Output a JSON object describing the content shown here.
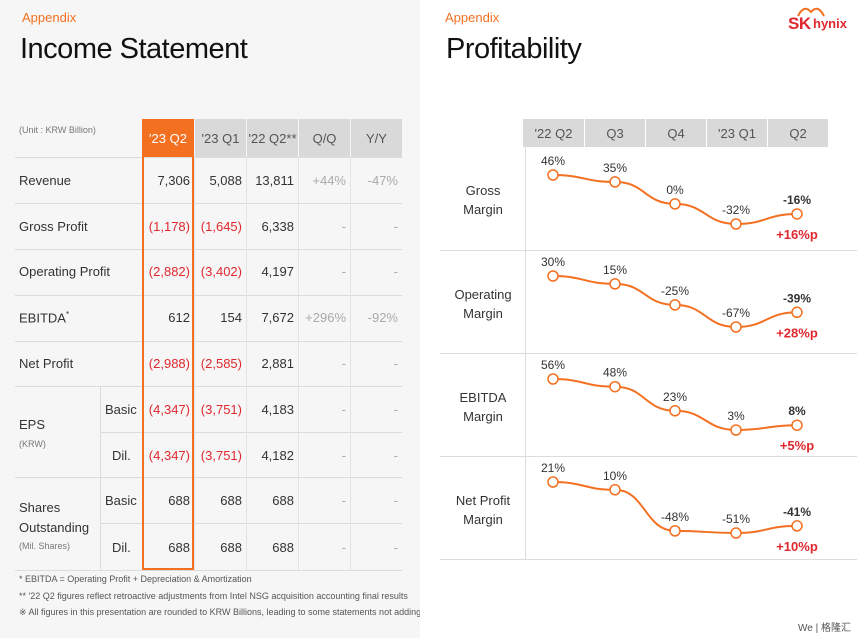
{
  "left": {
    "appendix": "Appendix",
    "title": "Income Statement",
    "unit": "(Unit : KRW Billion)",
    "headers": [
      "'23 Q2",
      "'23 Q1",
      "'22 Q2**",
      "Q/Q",
      "Y/Y"
    ],
    "rows": {
      "revenue": {
        "label": "Revenue",
        "values": [
          "7,306",
          "5,088",
          "13,811",
          "+44%",
          "-47%"
        ]
      },
      "gross_profit": {
        "label": "Gross Profit",
        "values": [
          "(1,178)",
          "(1,645)",
          "6,338",
          "-",
          "-"
        ]
      },
      "operating_profit": {
        "label": "Operating Profit",
        "values": [
          "(2,882)",
          "(3,402)",
          "4,197",
          "-",
          "-"
        ]
      },
      "ebitda": {
        "label": "EBITDA",
        "label_sup": "*",
        "values": [
          "612",
          "154",
          "7,672",
          "+296%",
          "-92%"
        ]
      },
      "net_profit": {
        "label": "Net Profit",
        "values": [
          "(2,988)",
          "(2,585)",
          "2,881",
          "-",
          "-"
        ]
      },
      "eps_basic": {
        "values": [
          "(4,347)",
          "(3,751)",
          "4,183",
          "-",
          "-"
        ]
      },
      "eps_dil": {
        "values": [
          "(4,347)",
          "(3,751)",
          "4,182",
          "-",
          "-"
        ]
      },
      "shares_basic": {
        "values": [
          "688",
          "688",
          "688",
          "-",
          "-"
        ]
      },
      "shares_dil": {
        "values": [
          "688",
          "688",
          "688",
          "-",
          "-"
        ]
      }
    },
    "eps": {
      "label": "EPS",
      "sub": "(KRW)"
    },
    "shares": {
      "label1": "Shares",
      "label2": "Outstanding",
      "sub": "(Mil. Shares)"
    },
    "basic": "Basic",
    "dil": "Dil.",
    "footnotes": [
      "* EBITDA = Operating Profit + Depreciation & Amortization",
      "** '22 Q2 figures reflect retroactive adjustments from Intel NSG acquisition accounting final results",
      "※ All figures in this presentation are rounded to KRW Billions, leading to some statements not adding up completely"
    ]
  },
  "right": {
    "appendix": "Appendix",
    "title": "Profitability",
    "logo_sk": "SK",
    "logo_hynix": "hynix",
    "watermark": "We | 格隆汇"
  },
  "colors": {
    "accent": "#f37021",
    "negative": "#e0282e",
    "header_bg": "#d9d9d9"
  },
  "chart_data": {
    "type": "line",
    "categories": [
      "'22 Q2",
      "Q3",
      "Q4",
      "'23 Q1",
      "Q2"
    ],
    "series": [
      {
        "name": "Gross Margin",
        "label_line1": "Gross",
        "label_line2": "Margin",
        "values": [
          46,
          35,
          0,
          -32,
          -16
        ],
        "labels": [
          "46%",
          "35%",
          "0%",
          "-32%",
          "-16%"
        ],
        "change": "+16%p"
      },
      {
        "name": "Operating Margin",
        "label_line1": "Operating",
        "label_line2": "Margin",
        "values": [
          30,
          15,
          -25,
          -67,
          -39
        ],
        "labels": [
          "30%",
          "15%",
          "-25%",
          "-67%",
          "-39%"
        ],
        "change": "+28%p"
      },
      {
        "name": "EBITDA Margin",
        "label_line1": "EBITDA",
        "label_line2": "Margin",
        "values": [
          56,
          48,
          23,
          3,
          8
        ],
        "labels": [
          "56%",
          "48%",
          "23%",
          "3%",
          "8%"
        ],
        "change": "+5%p"
      },
      {
        "name": "Net Profit Margin",
        "label_line1": "Net Profit",
        "label_line2": "Margin",
        "values": [
          21,
          10,
          -48,
          -51,
          -41
        ],
        "labels": [
          "21%",
          "10%",
          "-48%",
          "-51%",
          "-41%"
        ],
        "change": "+10%p"
      }
    ]
  }
}
